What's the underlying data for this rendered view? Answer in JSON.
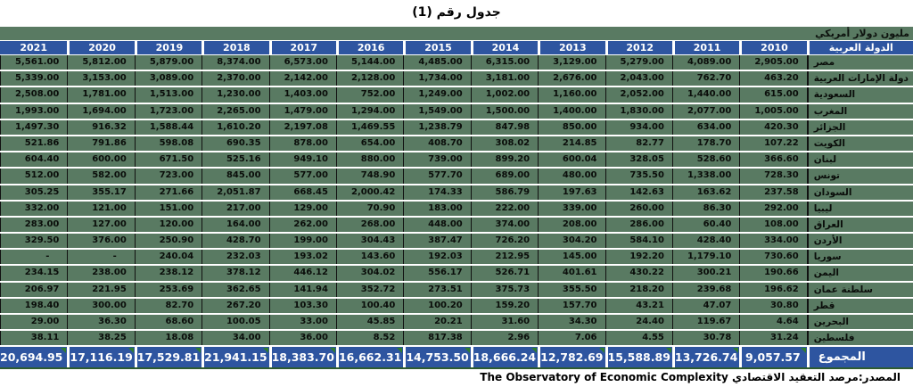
{
  "title": "جدول رقم (1)",
  "unit_note": "مليون دولار أمريكي",
  "footer": {
    "source": "المصدر:مرصد التعقيد الاقتصادي The Observatory of Economic Complexity"
  },
  "colors": {
    "header_bg": "#2e55a0",
    "total_bg": "#2e55a0",
    "body_bg": "#597a62",
    "row_divider": "#ffffff",
    "column_divider": "#111111",
    "error_flag_triangle": "#2f7d2f",
    "total_underline": "#2e5b2e"
  },
  "table": {
    "country_header": "الدولة العربية",
    "years": [
      "2021",
      "2020",
      "2019",
      "2018",
      "2017",
      "2016",
      "2015",
      "2014",
      "2013",
      "2012",
      "2011",
      "2010"
    ],
    "rows": [
      {
        "country": "مصر",
        "values": [
          "5,561.00",
          "5,812.00",
          "5,879.00",
          "8,374.00",
          "6,573.00",
          "5,144.00",
          "4,485.00",
          "6,315.00",
          "3,129.00",
          "5,279.00",
          "4,089.00",
          "2,905.00"
        ]
      },
      {
        "country": "دولة الإمارات العربية",
        "values": [
          "5,339.00",
          "3,153.00",
          "3,089.00",
          "2,370.00",
          "2,142.00",
          "2,128.00",
          "1,734.00",
          "3,181.00",
          "2,676.00",
          "2,043.00",
          "762.70",
          "463.20"
        ]
      },
      {
        "country": "السعودية",
        "values": [
          "2,508.00",
          "1,781.00",
          "1,513.00",
          "1,230.00",
          "1,403.00",
          "752.00",
          "1,249.00",
          "1,002.00",
          "1,160.00",
          "2,052.00",
          "1,440.00",
          "615.00"
        ]
      },
      {
        "country": "المغرب",
        "values": [
          "1,993.00",
          "1,694.00",
          "1,723.00",
          "2,265.00",
          "1,479.00",
          "1,294.00",
          "1,549.00",
          "1,500.00",
          "1,400.00",
          "1,830.00",
          "2,077.00",
          "1,005.00"
        ]
      },
      {
        "country": "الجزائر",
        "values": [
          "1,497.30",
          "916.32",
          "1,588.44",
          "1,610.20",
          "2,197.08",
          "1,469.55",
          "1,238.79",
          "847.98",
          "850.00",
          "934.00",
          "634.00",
          "420.30"
        ]
      },
      {
        "country": "الكويت",
        "values": [
          "521.86",
          "791.86",
          "598.08",
          "690.35",
          "878.00",
          "654.00",
          "408.70",
          "308.02",
          "214.85",
          "82.77",
          "178.70",
          "107.22"
        ]
      },
      {
        "country": "لبنان",
        "values": [
          "604.40",
          "600.00",
          "671.50",
          "525.16",
          "949.10",
          "880.00",
          "739.00",
          "899.20",
          "600.04",
          "328.05",
          "528.60",
          "366.60"
        ]
      },
      {
        "country": "تونس",
        "values": [
          "512.00",
          "582.00",
          "723.00",
          "845.00",
          "577.00",
          "748.90",
          "577.70",
          "689.00",
          "480.00",
          "735.50",
          "1,338.00",
          "728.30"
        ]
      },
      {
        "country": "السودان",
        "values": [
          "305.25",
          "355.17",
          "271.66",
          "2,051.87",
          "668.45",
          "2,000.42",
          "174.33",
          "586.79",
          "197.63",
          "142.63",
          "163.62",
          "237.58"
        ]
      },
      {
        "country": "ليبيا",
        "values": [
          "332.00",
          "121.00",
          "151.00",
          "217.00",
          "129.00",
          "70.90",
          "183.00",
          "222.00",
          "339.00",
          "260.00",
          "86.30",
          "292.00"
        ]
      },
      {
        "country": "العراق",
        "values": [
          "283.00",
          "127.00",
          "120.00",
          "164.00",
          "262.00",
          "268.00",
          "448.00",
          "374.00",
          "208.00",
          "286.00",
          "60.40",
          "108.00"
        ]
      },
      {
        "country": "الأردن",
        "values": [
          "329.50",
          "376.00",
          "250.90",
          "428.70",
          "199.00",
          "304.43",
          "387.47",
          "726.20",
          "304.20",
          "584.10",
          "428.40",
          "334.00"
        ]
      },
      {
        "country": "سوريا",
        "values": [
          "-",
          "-",
          "240.04",
          "232.03",
          "193.02",
          "143.60",
          "192.03",
          "212.95",
          "145.00",
          "192.20",
          "1,179.10",
          "730.60"
        ]
      },
      {
        "country": "اليمن",
        "values": [
          "234.15",
          "238.00",
          "238.12",
          "378.12",
          "446.12",
          "304.02",
          "556.17",
          "526.71",
          "401.61",
          "430.22",
          "300.21",
          "190.66"
        ]
      },
      {
        "country": "سلطنة عمان",
        "values": [
          "206.97",
          "221.95",
          "253.69",
          "362.65",
          "141.94",
          "352.72",
          "273.51",
          "375.73",
          "355.50",
          "218.20",
          "239.68",
          "196.62"
        ]
      },
      {
        "country": "قطر",
        "values": [
          "198.40",
          "300.00",
          "82.70",
          "267.20",
          "103.30",
          "100.40",
          "100.20",
          "159.20",
          "157.70",
          "43.21",
          "47.07",
          "30.80"
        ]
      },
      {
        "country": "البحرين",
        "values": [
          "29.00",
          "36.30",
          "68.60",
          "100.05",
          "33.00",
          "45.85",
          "20.21",
          "31.60",
          "34.30",
          "24.40",
          "119.67",
          "4.64"
        ]
      },
      {
        "country": "فلسطين",
        "values": [
          "38.11",
          "38.25",
          "18.08",
          "34.00",
          "36.00",
          "8.52",
          "817.38",
          "2.96",
          "7.06",
          "4.55",
          "30.78",
          "31.24"
        ]
      }
    ],
    "total": {
      "label": "المجموع",
      "values": [
        "20,694.95",
        "17,116.19",
        "17,529.81",
        "21,941.15",
        "18,383.70",
        "16,662.31",
        "14,753.50",
        "18,666.24",
        "12,782.69",
        "15,588.89",
        "13,726.74",
        "9,057.57"
      ]
    }
  }
}
